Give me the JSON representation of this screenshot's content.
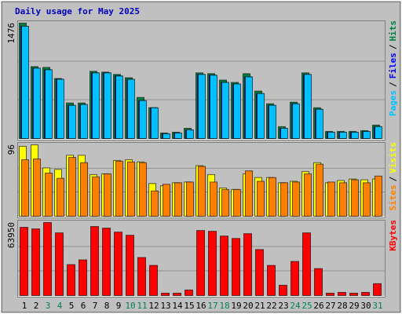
{
  "chart_data": [
    {
      "type": "bar",
      "title": "Daily usage for May 2025",
      "ylim": [
        0,
        1476
      ],
      "yticks": [
        1476
      ],
      "legend_separator": "/",
      "series": [
        {
          "name": "Hits",
          "color": "#008040",
          "values": [
            1476,
            920,
            910,
            768,
            455,
            455,
            860,
            850,
            820,
            778,
            526,
            394,
            71,
            81,
            131,
            840,
            830,
            748,
            718,
            830,
            607,
            445,
            152,
            465,
            840,
            394,
            91,
            91,
            91,
            101,
            172
          ]
        },
        {
          "name": "Files",
          "color": "#0000ff",
          "values": [
            1436,
            900,
            880,
            758,
            425,
            435,
            840,
            840,
            800,
            758,
            485,
            394,
            61,
            71,
            111,
            820,
            810,
            718,
            698,
            789,
            576,
            425,
            131,
            445,
            820,
            374,
            81,
            81,
            81,
            91,
            152
          ]
        },
        {
          "name": "Pages",
          "color": "#00c0ff",
          "values": [
            1436,
            900,
            880,
            758,
            425,
            435,
            840,
            840,
            800,
            758,
            485,
            394,
            61,
            71,
            111,
            820,
            810,
            718,
            698,
            789,
            576,
            425,
            131,
            445,
            820,
            374,
            81,
            81,
            81,
            91,
            152
          ]
        }
      ]
    },
    {
      "type": "bar",
      "ylim": [
        0,
        96
      ],
      "yticks": [
        96
      ],
      "legend_separator": "/",
      "series": [
        {
          "name": "Visits",
          "color": "#ffff00",
          "values": [
            94,
            96,
            65,
            63,
            82,
            82,
            56,
            57,
            75,
            76,
            73,
            44,
            41,
            45,
            46,
            68,
            56,
            38,
            36,
            57,
            52,
            52,
            45,
            47,
            60,
            72,
            45,
            48,
            50,
            49,
            50
          ]
        },
        {
          "name": "Sites",
          "color": "#ff8000",
          "values": [
            76,
            77,
            58,
            51,
            79,
            72,
            53,
            57,
            74,
            73,
            72,
            34,
            43,
            45,
            46,
            67,
            46,
            36,
            36,
            61,
            47,
            52,
            45,
            46,
            57,
            70,
            46,
            45,
            49,
            45,
            54
          ]
        }
      ]
    },
    {
      "type": "bar",
      "ylim": [
        0,
        63950
      ],
      "yticks": [
        63950
      ],
      "categories": [
        "1",
        "2",
        "3",
        "4",
        "5",
        "6",
        "7",
        "8",
        "9",
        "10",
        "11",
        "12",
        "13",
        "14",
        "15",
        "16",
        "17",
        "18",
        "19",
        "20",
        "21",
        "22",
        "23",
        "24",
        "25",
        "26",
        "27",
        "28",
        "29",
        "30",
        "31"
      ],
      "category_colors": [
        "#000000",
        "#000000",
        "#00805c",
        "#00805c",
        "#000000",
        "#000000",
        "#000000",
        "#000000",
        "#000000",
        "#00805c",
        "#00805c",
        "#000000",
        "#000000",
        "#000000",
        "#000000",
        "#000000",
        "#00805c",
        "#00805c",
        "#000000",
        "#000000",
        "#000000",
        "#000000",
        "#000000",
        "#00805c",
        "#00805c",
        "#000000",
        "#000000",
        "#000000",
        "#000000",
        "#000000",
        "#00805c"
      ],
      "series": [
        {
          "name": "KBytes",
          "color": "#ff0000",
          "values": [
            59780,
            58390,
            63950,
            54910,
            27110,
            31280,
            60470,
            59080,
            55600,
            52830,
            33360,
            26410,
            2090,
            2090,
            4870,
            56990,
            56300,
            52130,
            50040,
            54210,
            40320,
            26410,
            9040,
            29890,
            54910,
            23630,
            2090,
            2780,
            2090,
            2780,
            10420
          ]
        }
      ]
    }
  ]
}
